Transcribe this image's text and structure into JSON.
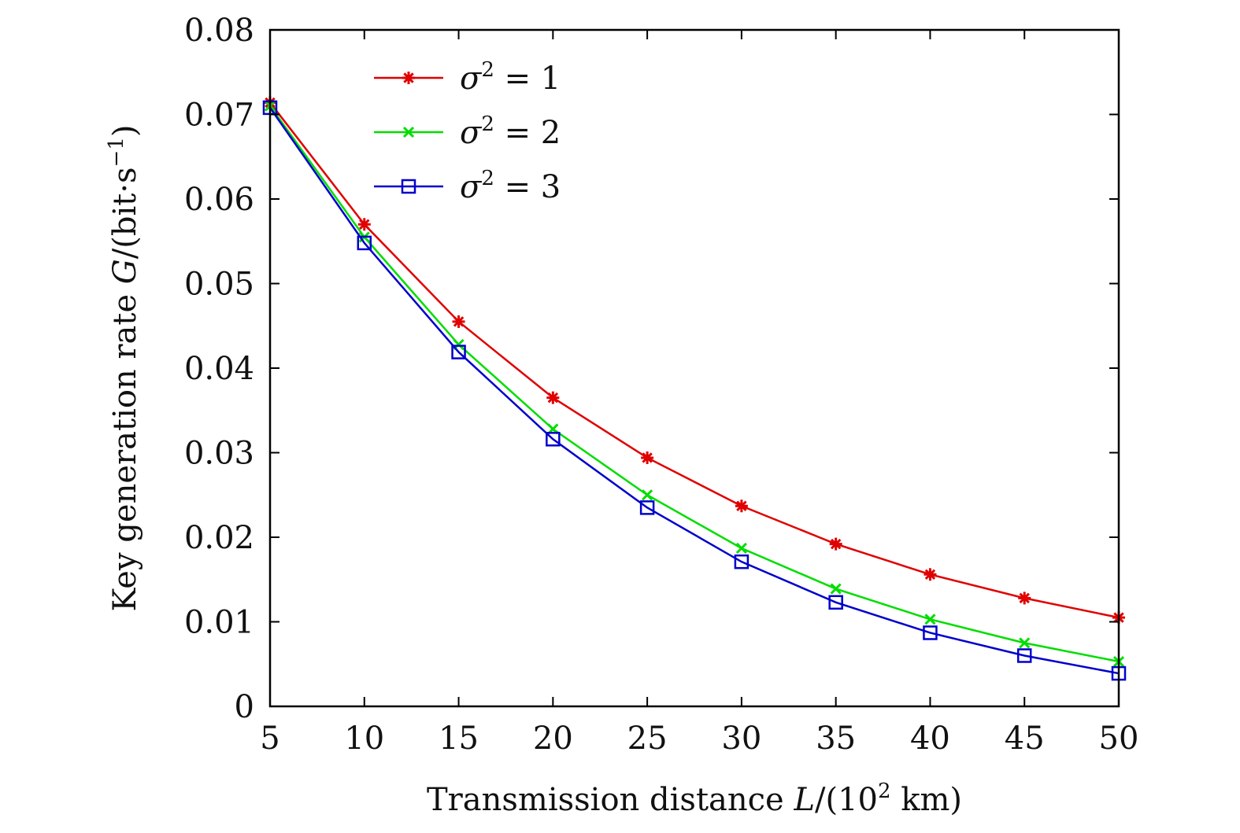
{
  "chart_data": {
    "type": "line",
    "xlabel_parts": [
      "Transmission distance ",
      "L",
      "/(10",
      "2",
      " km)"
    ],
    "ylabel_parts": [
      "Key generation rate ",
      "G",
      "/(bit·s",
      "−1",
      ")"
    ],
    "x": [
      5,
      10,
      15,
      20,
      25,
      30,
      35,
      40,
      45,
      50
    ],
    "xlim": [
      5,
      50
    ],
    "ylim": [
      0,
      0.08
    ],
    "x_ticks": [
      "5",
      "10",
      "15",
      "20",
      "25",
      "30",
      "35",
      "40",
      "45",
      "50"
    ],
    "y_ticks": [
      "0",
      "0.01",
      "0.02",
      "0.03",
      "0.04",
      "0.05",
      "0.06",
      "0.07",
      "0.08"
    ],
    "grid": false,
    "legend_position": "top-left",
    "series": [
      {
        "name": "σ2 = 1",
        "legend_label": {
          "sym": "σ",
          "sup": "2",
          "rest": " = 1"
        },
        "color": "#e00000",
        "marker": "asterisk",
        "values": [
          0.0714,
          0.057,
          0.0455,
          0.0365,
          0.0294,
          0.0237,
          0.0192,
          0.0156,
          0.0128,
          0.0105
        ]
      },
      {
        "name": "σ2 = 2",
        "legend_label": {
          "sym": "σ",
          "sup": "2",
          "rest": " = 2"
        },
        "color": "#00dd00",
        "marker": "x",
        "values": [
          0.071,
          0.0555,
          0.0428,
          0.0328,
          0.025,
          0.0187,
          0.0139,
          0.0103,
          0.0075,
          0.0053
        ]
      },
      {
        "name": "σ2 = 3",
        "legend_label": {
          "sym": "σ",
          "sup": "2",
          "rest": " = 3"
        },
        "color": "#0000cc",
        "marker": "square",
        "values": [
          0.0708,
          0.0548,
          0.0419,
          0.0316,
          0.0235,
          0.0171,
          0.0123,
          0.0087,
          0.006,
          0.0039
        ]
      }
    ]
  }
}
